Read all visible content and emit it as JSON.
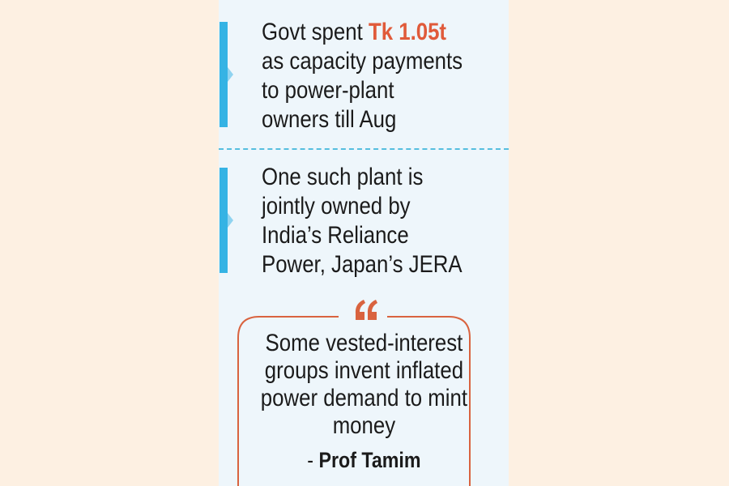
{
  "points": [
    {
      "lead": "Govt spent",
      "highlight": "Tk 1.05t",
      "lines": [
        "as capacity payments",
        "to power-plant",
        "owners till Aug"
      ]
    },
    {
      "lines": [
        "One such plant is",
        "jointly owned by",
        "India’s Reliance",
        "Power, Japan’s JERA"
      ]
    }
  ],
  "quote": {
    "lines": [
      "Some vested-interest",
      "groups invent inflated",
      "power demand to mint",
      "money"
    ],
    "attribution_mark": "-",
    "attribution": "Prof Tamim"
  }
}
